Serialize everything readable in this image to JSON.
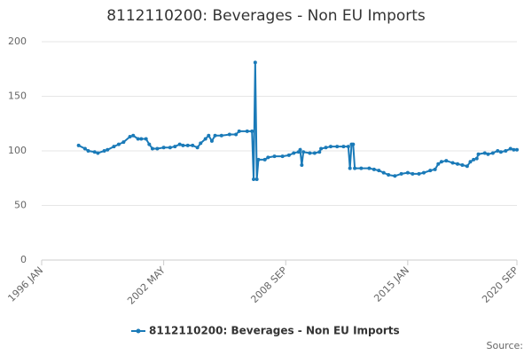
{
  "chart_data": {
    "type": "line",
    "title": "8112110200: Beverages - Non EU Imports",
    "source": "Source:",
    "xlim": [
      "1996 JAN",
      "2020 SEP"
    ],
    "xticks": [
      "1996 JAN",
      "2002 MAY",
      "2008 SEP",
      "2015 JAN",
      "2020 SEP"
    ],
    "ylim": [
      0,
      200
    ],
    "yticks": [
      0,
      50,
      100,
      150,
      200
    ],
    "grid": true,
    "legend": "bottom",
    "x": [
      "1997 DEC",
      "1998 APR",
      "1998 JUN",
      "1998 OCT",
      "1998 DEC",
      "1999 APR",
      "1999 JUN",
      "1999 OCT",
      "2000 JAN",
      "2000 APR",
      "2000 AUG",
      "2000 OCT",
      "2001 JAN",
      "2001 MAR",
      "2001 JUN",
      "2001 AUG",
      "2001 OCT",
      "2002 JAN",
      "2002 MAY",
      "2002 SEP",
      "2002 DEC",
      "2003 MAR",
      "2003 MAY",
      "2003 AUG",
      "2003 NOV",
      "2004 FEB",
      "2004 APR",
      "2004 JUL",
      "2004 SEP",
      "2004 NOV",
      "2005 JAN",
      "2005 MAY",
      "2005 OCT",
      "2006 FEB",
      "2006 APR",
      "2006 SEP",
      "2006 DEC",
      "2007 JAN",
      "2007 FEB",
      "2007 MAR",
      "2007 APR",
      "2007 AUG",
      "2007 OCT",
      "2008 FEB",
      "2008 JUL",
      "2008 NOV",
      "2009 FEB",
      "2009 MAY",
      "2009 JUN",
      "2009 JUL",
      "2009 AUG",
      "2009 DEC",
      "2010 MAR",
      "2010 JUN",
      "2010 JUL",
      "2010 OCT",
      "2011 JAN",
      "2011 MAY",
      "2011 SEP",
      "2011 DEC",
      "2012 JAN",
      "2012 FEB",
      "2012 MAR",
      "2012 APR",
      "2012 AUG",
      "2013 JAN",
      "2013 APR",
      "2013 JUL",
      "2013 OCT",
      "2014 JAN",
      "2014 MAY",
      "2014 SEP",
      "2015 JAN",
      "2015 APR",
      "2015 AUG",
      "2015 NOV",
      "2016 MAR",
      "2016 JUN",
      "2016 AUG",
      "2016 OCT",
      "2017 JAN",
      "2017 MAY",
      "2017 AUG",
      "2017 NOV",
      "2018 FEB",
      "2018 APR",
      "2018 JUN",
      "2018 AUG",
      "2018 SEP",
      "2019 JAN",
      "2019 MAR",
      "2019 JUN",
      "2019 SEP",
      "2019 NOV",
      "2020 FEB",
      "2020 MAY",
      "2020 JUL",
      "2020 SEP"
    ],
    "series": [
      {
        "name": "8112110200: Beverages - Non EU Imports",
        "color": "#1a7ab8",
        "values": [
          105,
          102,
          100,
          99,
          98,
          100,
          101,
          104,
          106,
          108,
          113,
          114,
          111,
          111,
          111,
          106,
          102,
          102,
          103,
          103,
          104,
          106,
          105,
          105,
          105,
          103,
          107,
          111,
          114,
          109,
          114,
          114,
          115,
          115,
          118,
          118,
          118,
          74,
          181,
          74,
          92,
          92,
          94,
          95,
          95,
          96,
          98,
          99,
          101,
          87,
          99,
          98,
          98,
          99,
          102,
          103,
          104,
          104,
          104,
          104,
          84,
          106,
          106,
          84,
          84,
          84,
          83,
          82,
          80,
          78,
          77,
          79,
          80,
          79,
          79,
          80,
          82,
          83,
          88,
          90,
          91,
          89,
          88,
          87,
          86,
          90,
          92,
          93,
          97,
          98,
          97,
          98,
          100,
          99,
          100,
          102,
          101,
          101
        ]
      }
    ]
  }
}
